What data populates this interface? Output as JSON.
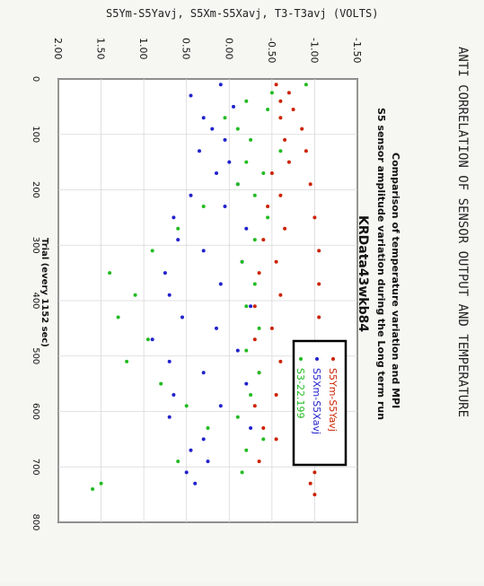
{
  "handwriting": {
    "top_label": "S5Ym-S5Yavj, S5Xm-S5Xavj, T3-T3avj (VOLTS)",
    "side_label": "ANTI CORRELATION OF SENSOR OUTPUT AND TEMPERATURE"
  },
  "chart_data": {
    "type": "scatter",
    "title_lines": [
      "Comparison of temperature variation and MPI",
      "S5 sensor amplitude variation during the Long term run"
    ],
    "subtitle": "KRData43wkb84",
    "xlabel": "Trial (every 1152 sec)",
    "ylabel": "",
    "xlim": [
      0,
      800
    ],
    "ylim": [
      -1.5,
      2.0
    ],
    "x_ticks": [
      "0",
      "100",
      "200",
      "300",
      "400",
      "500",
      "600",
      "700",
      "800"
    ],
    "y_ticks": [
      "-1.50",
      "-1.00",
      "-0.50",
      "0.00",
      "0.50",
      "1.00",
      "1.50",
      "2.00"
    ],
    "grid": true,
    "legend_position": "lower-right",
    "series": [
      {
        "name": "S5Ym-S5Yavj",
        "color": "#cc2200",
        "x": [
          10,
          25,
          40,
          55,
          70,
          90,
          110,
          130,
          150,
          170,
          190,
          210,
          230,
          250,
          270,
          290,
          310,
          330,
          350,
          370,
          390,
          410,
          430,
          450,
          470,
          490,
          510,
          530,
          550,
          570,
          590,
          610,
          630,
          650,
          670,
          690,
          710,
          730,
          750
        ],
        "y": [
          -0.55,
          -0.7,
          -0.6,
          -0.75,
          -0.6,
          -0.85,
          -0.65,
          -0.9,
          -0.7,
          -0.5,
          -0.95,
          -0.6,
          -0.45,
          -1.0,
          -0.65,
          -0.4,
          -1.05,
          -0.55,
          -0.35,
          -1.05,
          -0.6,
          -0.3,
          -1.05,
          -0.5,
          -0.3,
          -1.05,
          -0.6,
          -0.35,
          -1.0,
          -0.55,
          -0.3,
          -0.95,
          -0.4,
          -0.55,
          -0.8,
          -0.35,
          -1.0,
          -0.95,
          -1.0
        ]
      },
      {
        "name": "S5Xm-S5Xavj",
        "color": "#2222cc",
        "x": [
          10,
          30,
          50,
          70,
          90,
          110,
          130,
          150,
          170,
          190,
          210,
          230,
          250,
          270,
          290,
          310,
          330,
          350,
          370,
          390,
          410,
          430,
          450,
          470,
          490,
          510,
          530,
          550,
          570,
          590,
          610,
          630,
          650,
          670,
          690,
          710,
          730
        ],
        "y": [
          0.1,
          0.45,
          -0.05,
          0.3,
          0.2,
          0.05,
          0.35,
          0.0,
          0.15,
          -0.1,
          0.45,
          0.05,
          0.65,
          -0.2,
          0.6,
          0.3,
          -0.15,
          0.75,
          0.1,
          0.7,
          -0.25,
          0.55,
          0.15,
          0.9,
          -0.1,
          0.7,
          0.3,
          -0.2,
          0.65,
          0.1,
          0.7,
          -0.25,
          0.3,
          0.45,
          0.25,
          0.5,
          0.4
        ]
      },
      {
        "name": "S3-22.199",
        "color": "#22bb22",
        "x": [
          10,
          25,
          40,
          55,
          70,
          90,
          110,
          130,
          150,
          170,
          190,
          210,
          230,
          250,
          270,
          290,
          310,
          330,
          350,
          370,
          390,
          410,
          430,
          450,
          470,
          490,
          510,
          530,
          550,
          570,
          590,
          610,
          630,
          650,
          670,
          690,
          710,
          730,
          740
        ],
        "y": [
          -0.9,
          -0.5,
          -0.2,
          -0.45,
          0.05,
          -0.1,
          -0.25,
          -0.6,
          -0.2,
          -0.4,
          -0.1,
          -0.3,
          0.3,
          -0.45,
          0.6,
          -0.3,
          0.9,
          -0.15,
          1.4,
          -0.3,
          1.1,
          -0.2,
          1.3,
          -0.35,
          0.95,
          -0.2,
          1.2,
          -0.35,
          0.8,
          -0.25,
          0.5,
          -0.1,
          0.25,
          -0.4,
          -0.2,
          0.6,
          -0.15,
          1.5,
          1.6
        ]
      }
    ]
  }
}
